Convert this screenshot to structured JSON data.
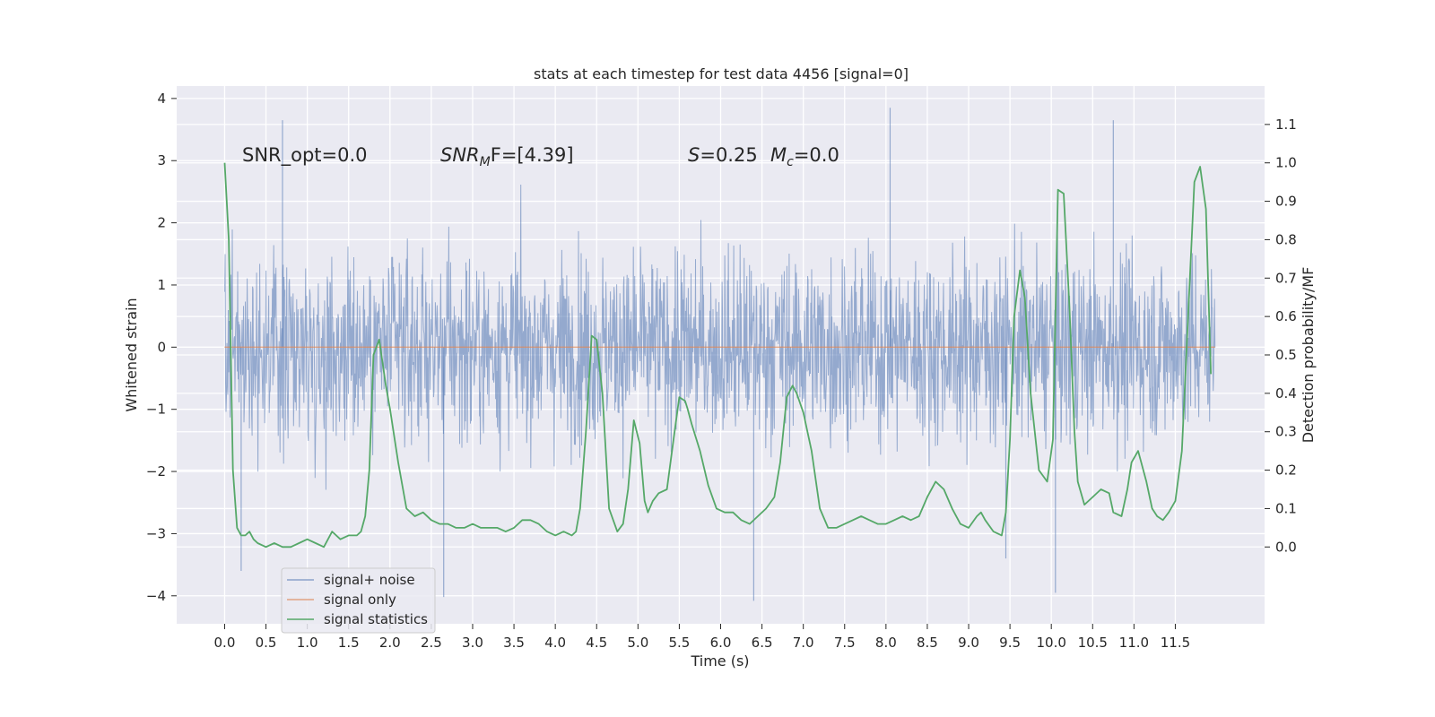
{
  "chart_data": {
    "type": "line",
    "title": "stats at each timestep for test data 4456 [signal=0]",
    "xlabel": "Time (s)",
    "ylabel": "Whitened strain",
    "y2label": "Detection probability/MF",
    "xlim": [
      -0.58,
      12.58
    ],
    "ylim": [
      -4.45,
      4.2
    ],
    "y2lim": [
      -0.2,
      1.2
    ],
    "x_ticks": [
      0.0,
      0.5,
      1.0,
      1.5,
      2.0,
      2.5,
      3.0,
      3.5,
      4.0,
      4.5,
      5.0,
      5.5,
      6.0,
      6.5,
      7.0,
      7.5,
      8.0,
      8.5,
      9.0,
      9.5,
      10.0,
      10.5,
      11.0,
      11.5
    ],
    "x_tick_labels": [
      "0.0",
      "0.5",
      "1.0",
      "1.5",
      "2.0",
      "2.5",
      "3.0",
      "3.5",
      "4.0",
      "4.5",
      "5.0",
      "5.5",
      "6.0",
      "6.5",
      "7.0",
      "7.5",
      "8.0",
      "8.5",
      "9.0",
      "9.5",
      "10.0",
      "10.5",
      "11.0",
      "11.5"
    ],
    "y_ticks": [
      4,
      3,
      2,
      1,
      0,
      -1,
      -2,
      -3,
      -4
    ],
    "y_tick_labels": [
      "4",
      "3",
      "2",
      "1",
      "0",
      "−1",
      "−2",
      "−3",
      "−4"
    ],
    "y2_ticks": [
      1.1,
      1.0,
      0.9,
      0.8,
      0.7,
      0.6,
      0.5,
      0.4,
      0.3,
      0.2,
      0.1,
      0.0
    ],
    "y2_tick_labels": [
      "1.1",
      "1.0",
      "0.9",
      "0.8",
      "0.7",
      "0.6",
      "0.5",
      "0.4",
      "0.3",
      "0.2",
      "0.1",
      "0.0"
    ],
    "grid": true,
    "legend_position": "lower-left",
    "annotations": {
      "snr_opt": "SNR_opt=0.0",
      "snr_mf_main": "SNR",
      "snr_mf_sub": "M",
      "snr_mf_rest": "F=[4.39]",
      "s_label": "S",
      "s_rest": "=0.25",
      "mc_main": "M",
      "mc_sub": "c",
      "mc_rest": "=0.0"
    },
    "series": [
      {
        "name": "signal+ noise",
        "color": "#4c72b0",
        "description_axis": "left",
        "t_start": 0.0,
        "t_end": 11.98,
        "envelope_typical": [
          -1.8,
          2.6
        ],
        "notable_peaks": [
          {
            "x": 0.7,
            "y": 3.65
          },
          {
            "x": 8.05,
            "y": 3.85
          },
          {
            "x": 10.75,
            "y": 3.65
          },
          {
            "x": 2.65,
            "y": -4.02
          },
          {
            "x": 6.4,
            "y": -4.08
          },
          {
            "x": 10.05,
            "y": -3.95
          },
          {
            "x": 0.2,
            "y": -3.6
          },
          {
            "x": 9.45,
            "y": -3.4
          }
        ]
      },
      {
        "name": "signal only",
        "color": "#dd8452",
        "axis": "left",
        "x": [
          0.0,
          11.98
        ],
        "y": [
          0.0,
          0.0
        ]
      },
      {
        "name": "signal statistics",
        "color": "#55a868",
        "axis": "right",
        "x": [
          0.0,
          0.05,
          0.1,
          0.15,
          0.2,
          0.25,
          0.3,
          0.35,
          0.4,
          0.5,
          0.6,
          0.7,
          0.8,
          0.9,
          1.0,
          1.1,
          1.2,
          1.3,
          1.4,
          1.5,
          1.6,
          1.65,
          1.7,
          1.75,
          1.8,
          1.87,
          1.95,
          2.0,
          2.1,
          2.2,
          2.3,
          2.4,
          2.5,
          2.6,
          2.7,
          2.8,
          2.9,
          3.0,
          3.1,
          3.2,
          3.3,
          3.4,
          3.5,
          3.6,
          3.7,
          3.8,
          3.9,
          4.0,
          4.1,
          4.2,
          4.25,
          4.3,
          4.37,
          4.44,
          4.5,
          4.57,
          4.65,
          4.75,
          4.82,
          4.88,
          4.95,
          5.02,
          5.08,
          5.12,
          5.18,
          5.25,
          5.35,
          5.43,
          5.5,
          5.57,
          5.6,
          5.65,
          5.75,
          5.85,
          5.95,
          6.05,
          6.15,
          6.25,
          6.35,
          6.45,
          6.55,
          6.65,
          6.72,
          6.8,
          6.87,
          6.92,
          7.0,
          7.1,
          7.2,
          7.3,
          7.4,
          7.5,
          7.6,
          7.7,
          7.8,
          7.9,
          8.0,
          8.1,
          8.2,
          8.3,
          8.4,
          8.5,
          8.6,
          8.7,
          8.8,
          8.9,
          9.0,
          9.1,
          9.15,
          9.2,
          9.3,
          9.4,
          9.45,
          9.5,
          9.55,
          9.62,
          9.68,
          9.75,
          9.85,
          9.95,
          10.02,
          10.08,
          10.15,
          10.22,
          10.28,
          10.32,
          10.4,
          10.5,
          10.6,
          10.7,
          10.75,
          10.85,
          10.92,
          10.97,
          11.05,
          11.15,
          11.22,
          11.28,
          11.35,
          11.42,
          11.5,
          11.58,
          11.65,
          11.73,
          11.8,
          11.87,
          11.93
        ],
        "y": [
          1.0,
          0.8,
          0.2,
          0.05,
          0.03,
          0.03,
          0.04,
          0.02,
          0.01,
          0.0,
          0.01,
          0.0,
          0.0,
          0.01,
          0.02,
          0.01,
          0.0,
          0.04,
          0.02,
          0.03,
          0.03,
          0.04,
          0.08,
          0.2,
          0.5,
          0.54,
          0.42,
          0.36,
          0.22,
          0.1,
          0.08,
          0.09,
          0.07,
          0.06,
          0.06,
          0.05,
          0.05,
          0.06,
          0.05,
          0.05,
          0.05,
          0.04,
          0.05,
          0.07,
          0.07,
          0.06,
          0.04,
          0.03,
          0.04,
          0.03,
          0.04,
          0.1,
          0.3,
          0.55,
          0.54,
          0.4,
          0.1,
          0.04,
          0.06,
          0.15,
          0.33,
          0.27,
          0.12,
          0.09,
          0.12,
          0.14,
          0.15,
          0.28,
          0.39,
          0.38,
          0.36,
          0.32,
          0.25,
          0.16,
          0.1,
          0.09,
          0.09,
          0.07,
          0.06,
          0.08,
          0.1,
          0.13,
          0.22,
          0.39,
          0.42,
          0.4,
          0.35,
          0.25,
          0.1,
          0.05,
          0.05,
          0.06,
          0.07,
          0.08,
          0.07,
          0.06,
          0.06,
          0.07,
          0.08,
          0.07,
          0.08,
          0.13,
          0.17,
          0.15,
          0.1,
          0.06,
          0.05,
          0.08,
          0.09,
          0.07,
          0.04,
          0.03,
          0.09,
          0.28,
          0.6,
          0.72,
          0.65,
          0.4,
          0.2,
          0.17,
          0.28,
          0.93,
          0.92,
          0.62,
          0.3,
          0.17,
          0.11,
          0.13,
          0.15,
          0.14,
          0.09,
          0.08,
          0.15,
          0.22,
          0.25,
          0.17,
          0.1,
          0.08,
          0.07,
          0.09,
          0.12,
          0.25,
          0.58,
          0.95,
          0.99,
          0.88,
          0.45
        ]
      }
    ]
  }
}
